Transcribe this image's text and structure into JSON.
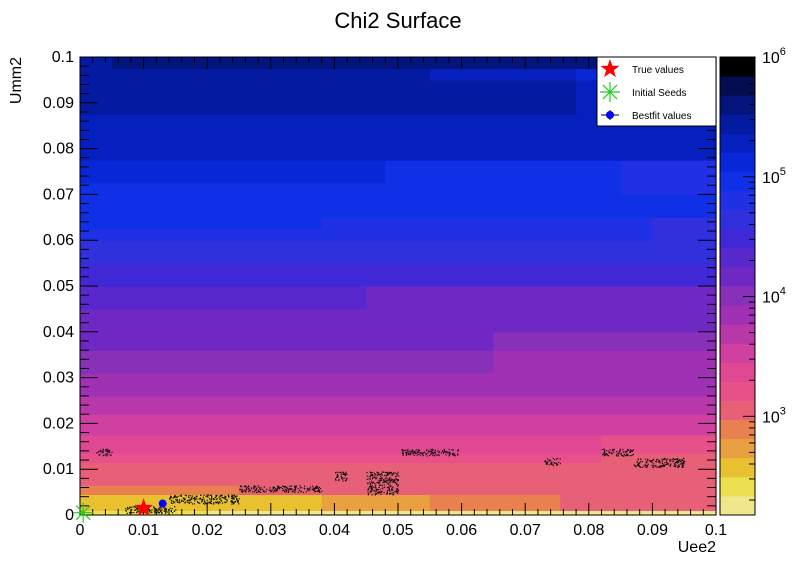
{
  "chart_data": {
    "type": "heatmap",
    "title": "Chi2 Surface",
    "xlabel": "Uee2",
    "ylabel": "Umm2",
    "xlim": [
      0,
      0.1
    ],
    "ylim": [
      0,
      0.1
    ],
    "x_ticks": [
      "0",
      "0.01",
      "0.02",
      "0.03",
      "0.04",
      "0.05",
      "0.06",
      "0.07",
      "0.08",
      "0.09",
      "0.1"
    ],
    "y_ticks": [
      "0",
      "0.01",
      "0.02",
      "0.03",
      "0.04",
      "0.05",
      "0.06",
      "0.07",
      "0.08",
      "0.09",
      "0.1"
    ],
    "colorbar": {
      "scale": "log",
      "range": [
        150,
        1000000
      ],
      "labels": [
        {
          "base": "10",
          "exp": "3",
          "value": 1000
        },
        {
          "base": "10",
          "exp": "4",
          "value": 10000
        },
        {
          "base": "10",
          "exp": "5",
          "value": 100000
        },
        {
          "base": "10",
          "exp": "6",
          "value": 1000000
        }
      ],
      "colors": [
        "#f0e68c",
        "#ece050",
        "#e8c030",
        "#e8a040",
        "#e88050",
        "#e86078",
        "#e8508a",
        "#e04894",
        "#d040a0",
        "#b838aa",
        "#a030b4",
        "#8830b8",
        "#7028c4",
        "#5828cc",
        "#4028d6",
        "#3030dc",
        "#2030e4",
        "#1030e8",
        "#0828d8",
        "#0620c0",
        "#041aa0",
        "#03147c",
        "#020e50",
        "#000000"
      ]
    },
    "regions": [
      {
        "band": [
          0.0,
          0.001
        ],
        "x_break": [
          0.02
        ],
        "levels": [
          1,
          0
        ]
      },
      {
        "band": [
          0.001,
          0.0045
        ],
        "x_break": [
          0.038,
          0.055,
          0.0755
        ],
        "levels": [
          2,
          3,
          4,
          5
        ]
      },
      {
        "band": [
          0.0045,
          0.0065
        ],
        "x_break": [
          0.025
        ],
        "levels": [
          4,
          5
        ]
      },
      {
        "band": [
          0.0065,
          0.0115
        ],
        "x_break": [],
        "levels": [
          5
        ]
      },
      {
        "band": [
          0.0115,
          0.0135
        ],
        "x_break": [
          0.082
        ],
        "levels": [
          6,
          5
        ]
      },
      {
        "band": [
          0.0135,
          0.0175
        ],
        "x_break": [
          0.082
        ],
        "levels": [
          7,
          6
        ]
      },
      {
        "band": [
          0.0175,
          0.022
        ],
        "x_break": [],
        "levels": [
          8
        ]
      },
      {
        "band": [
          0.022,
          0.026
        ],
        "x_break": [],
        "levels": [
          9
        ]
      },
      {
        "band": [
          0.026,
          0.031
        ],
        "x_break": [],
        "levels": [
          10
        ]
      },
      {
        "band": [
          0.031,
          0.036
        ],
        "x_break": [
          0.065
        ],
        "levels": [
          11,
          10
        ]
      },
      {
        "band": [
          0.036,
          0.04
        ],
        "x_break": [
          0.065
        ],
        "levels": [
          12,
          11
        ]
      },
      {
        "band": [
          0.04,
          0.045
        ],
        "x_break": [],
        "levels": [
          12
        ]
      },
      {
        "band": [
          0.045,
          0.05
        ],
        "x_break": [
          0.045
        ],
        "levels": [
          13,
          12
        ]
      },
      {
        "band": [
          0.05,
          0.055
        ],
        "x_break": [],
        "levels": [
          14
        ]
      },
      {
        "band": [
          0.055,
          0.06
        ],
        "x_break": [],
        "levels": [
          15
        ]
      },
      {
        "band": [
          0.06,
          0.0625
        ],
        "x_break": [
          0.09
        ],
        "levels": [
          16,
          15
        ]
      },
      {
        "band": [
          0.0625,
          0.065
        ],
        "x_break": [
          0.038,
          0.09
        ],
        "levels": [
          17,
          16,
          15
        ]
      },
      {
        "band": [
          0.065,
          0.07
        ],
        "x_break": [],
        "levels": [
          17
        ]
      },
      {
        "band": [
          0.07,
          0.0725
        ],
        "x_break": [
          0.085
        ],
        "levels": [
          17,
          16
        ]
      },
      {
        "band": [
          0.0725,
          0.0775
        ],
        "x_break": [
          0.048,
          0.085
        ],
        "levels": [
          18,
          17,
          16
        ]
      },
      {
        "band": [
          0.0775,
          0.0875
        ],
        "x_break": [],
        "levels": [
          19
        ]
      },
      {
        "band": [
          0.0875,
          0.095
        ],
        "x_break": [
          0.078
        ],
        "levels": [
          20,
          19
        ]
      },
      {
        "band": [
          0.095,
          0.0975
        ],
        "x_break": [
          0.055,
          0.078
        ],
        "levels": [
          20,
          19,
          18
        ]
      },
      {
        "band": [
          0.0975,
          0.1
        ],
        "x_break": [
          0.005
        ],
        "levels": [
          20,
          21
        ]
      }
    ],
    "contour_clusters": [
      {
        "x": [
          0.0025,
          0.005
        ],
        "y": [
          0.013,
          0.0145
        ]
      },
      {
        "x": [
          0.007,
          0.015
        ],
        "y": [
          0.0005,
          0.002
        ]
      },
      {
        "x": [
          0.014,
          0.025
        ],
        "y": [
          0.0025,
          0.0045
        ]
      },
      {
        "x": [
          0.025,
          0.038
        ],
        "y": [
          0.005,
          0.0065
        ]
      },
      {
        "x": [
          0.04,
          0.042
        ],
        "y": [
          0.0075,
          0.0095
        ]
      },
      {
        "x": [
          0.045,
          0.05
        ],
        "y": [
          0.0045,
          0.0095
        ]
      },
      {
        "x": [
          0.0505,
          0.0595
        ],
        "y": [
          0.013,
          0.0145
        ]
      },
      {
        "x": [
          0.073,
          0.0755
        ],
        "y": [
          0.011,
          0.0125
        ]
      },
      {
        "x": [
          0.082,
          0.087
        ],
        "y": [
          0.013,
          0.0145
        ]
      },
      {
        "x": [
          0.087,
          0.095
        ],
        "y": [
          0.0105,
          0.0125
        ]
      }
    ],
    "series": [
      {
        "name": "True values",
        "marker": "star",
        "color": "#ff0000",
        "points": [
          [
            0.01,
            0.0015
          ]
        ]
      },
      {
        "name": "Initial Seeds",
        "marker": "asterisk",
        "color": "#22cc22",
        "points": [
          [
            0.0005,
            0.0005
          ]
        ]
      },
      {
        "name": "Bestfit values",
        "marker": "circle",
        "color": "#0000ff",
        "points": [
          [
            0.013,
            0.0025
          ]
        ]
      }
    ],
    "legend_position": "top-right",
    "grid": false
  }
}
